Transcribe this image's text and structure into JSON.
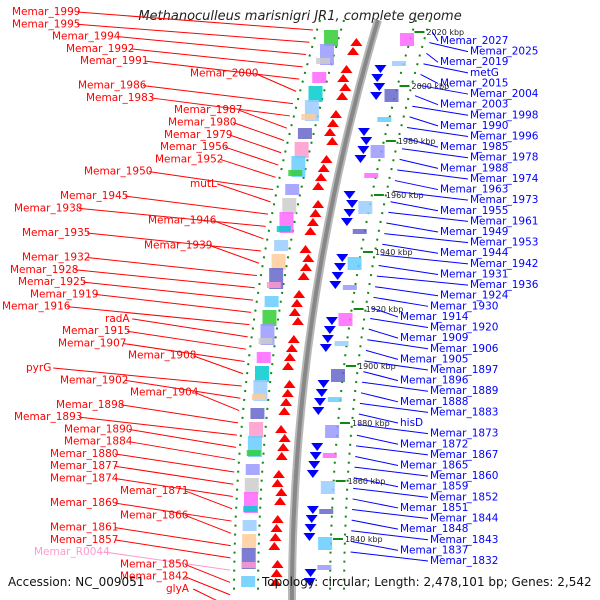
{
  "title": "Methanoculleus marisnigri JR1, complete genome",
  "accession": "Accession: NC_009051",
  "topology": "Topology: circular; Length: 2,478,101 bp; Genes: 2,542",
  "colors": {
    "left_label": "#ff0000",
    "right_label": "#0000ff",
    "rna_label": "#ff99cc",
    "backbone": "#888888",
    "tick": "#118811"
  },
  "kbp_ticks": [
    "2020 kbp",
    "2000 kbp",
    "1980 kbp",
    "1960 kbp",
    "1940 kbp",
    "1920 kbp",
    "1900 kbp",
    "1880 kbp",
    "1860 kbp",
    "1840 kbp"
  ],
  "left_labels": [
    {
      "text": "Memar_1999",
      "kind": "gene"
    },
    {
      "text": "Memar_1995",
      "kind": "gene"
    },
    {
      "text": "Memar_1994",
      "kind": "gene"
    },
    {
      "text": "Memar_1992",
      "kind": "gene"
    },
    {
      "text": "Memar_1991",
      "kind": "gene"
    },
    {
      "text": "Memar_2000",
      "kind": "gene"
    },
    {
      "text": "Memar_1986",
      "kind": "gene"
    },
    {
      "text": "Memar_1983",
      "kind": "gene"
    },
    {
      "text": "Memar_1987",
      "kind": "gene"
    },
    {
      "text": "Memar_1980",
      "kind": "gene"
    },
    {
      "text": "Memar_1979",
      "kind": "gene"
    },
    {
      "text": "Memar_1956",
      "kind": "gene"
    },
    {
      "text": "Memar_1952",
      "kind": "gene"
    },
    {
      "text": "Memar_1950",
      "kind": "gene"
    },
    {
      "text": "mutL",
      "kind": "gene"
    },
    {
      "text": "Memar_1945",
      "kind": "gene"
    },
    {
      "text": "Memar_1938",
      "kind": "gene"
    },
    {
      "text": "Memar_1946",
      "kind": "gene"
    },
    {
      "text": "Memar_1935",
      "kind": "gene"
    },
    {
      "text": "Memar_1939",
      "kind": "gene"
    },
    {
      "text": "Memar_1932",
      "kind": "gene"
    },
    {
      "text": "Memar_1928",
      "kind": "gene"
    },
    {
      "text": "Memar_1925",
      "kind": "gene"
    },
    {
      "text": "Memar_1919",
      "kind": "gene"
    },
    {
      "text": "Memar_1916",
      "kind": "gene"
    },
    {
      "text": "radA",
      "kind": "gene"
    },
    {
      "text": "Memar_1915",
      "kind": "gene"
    },
    {
      "text": "Memar_1907",
      "kind": "gene"
    },
    {
      "text": "Memar_1908",
      "kind": "gene"
    },
    {
      "text": "pyrG",
      "kind": "gene"
    },
    {
      "text": "Memar_1902",
      "kind": "gene"
    },
    {
      "text": "Memar_1904",
      "kind": "gene"
    },
    {
      "text": "Memar_1898",
      "kind": "gene"
    },
    {
      "text": "Memar_1893",
      "kind": "gene"
    },
    {
      "text": "Memar_1890",
      "kind": "gene"
    },
    {
      "text": "Memar_1884",
      "kind": "gene"
    },
    {
      "text": "Memar_1880",
      "kind": "gene"
    },
    {
      "text": "Memar_1877",
      "kind": "gene"
    },
    {
      "text": "Memar_1874",
      "kind": "gene"
    },
    {
      "text": "Memar_1871",
      "kind": "gene"
    },
    {
      "text": "Memar_1869",
      "kind": "gene"
    },
    {
      "text": "Memar_1866",
      "kind": "gene"
    },
    {
      "text": "Memar_1861",
      "kind": "gene"
    },
    {
      "text": "Memar_1857",
      "kind": "gene"
    },
    {
      "text": "Memar_R0044",
      "kind": "rna"
    },
    {
      "text": "Memar_1850",
      "kind": "gene"
    },
    {
      "text": "Memar_1842",
      "kind": "gene"
    },
    {
      "text": "glyA",
      "kind": "gene"
    }
  ],
  "right_labels": [
    {
      "text": "Memar_2027"
    },
    {
      "text": "Memar_2025"
    },
    {
      "text": "Memar_2019"
    },
    {
      "text": "metG"
    },
    {
      "text": "Memar_2015"
    },
    {
      "text": "Memar_2004"
    },
    {
      "text": "Memar_2003"
    },
    {
      "text": "Memar_1998"
    },
    {
      "text": "Memar_1990"
    },
    {
      "text": "Memar_1996"
    },
    {
      "text": "Memar_1985"
    },
    {
      "text": "Memar_1978"
    },
    {
      "text": "Memar_1988"
    },
    {
      "text": "Memar_1974"
    },
    {
      "text": "Memar_1963"
    },
    {
      "text": "Memar_1973"
    },
    {
      "text": "Memar_1955"
    },
    {
      "text": "Memar_1961"
    },
    {
      "text": "Memar_1949"
    },
    {
      "text": "Memar_1953"
    },
    {
      "text": "Memar_1944"
    },
    {
      "text": "Memar_1942"
    },
    {
      "text": "Memar_1931"
    },
    {
      "text": "Memar_1936"
    },
    {
      "text": "Memar_1924"
    },
    {
      "text": "Memar_1930"
    },
    {
      "text": "Memar_1914"
    },
    {
      "text": "Memar_1920"
    },
    {
      "text": "Memar_1909"
    },
    {
      "text": "Memar_1906"
    },
    {
      "text": "Memar_1905"
    },
    {
      "text": "Memar_1897"
    },
    {
      "text": "Memar_1896"
    },
    {
      "text": "Memar_1889"
    },
    {
      "text": "Memar_1888"
    },
    {
      "text": "Memar_1883"
    },
    {
      "text": "hisD"
    },
    {
      "text": "Memar_1873"
    },
    {
      "text": "Memar_1872"
    },
    {
      "text": "Memar_1867"
    },
    {
      "text": "Memar_1865"
    },
    {
      "text": "Memar_1860"
    },
    {
      "text": "Memar_1859"
    },
    {
      "text": "Memar_1852"
    },
    {
      "text": "Memar_1851"
    },
    {
      "text": "Memar_1844"
    },
    {
      "text": "Memar_1848"
    },
    {
      "text": "Memar_1843"
    },
    {
      "text": "Memar_1837"
    },
    {
      "text": "Memar_1832"
    }
  ]
}
